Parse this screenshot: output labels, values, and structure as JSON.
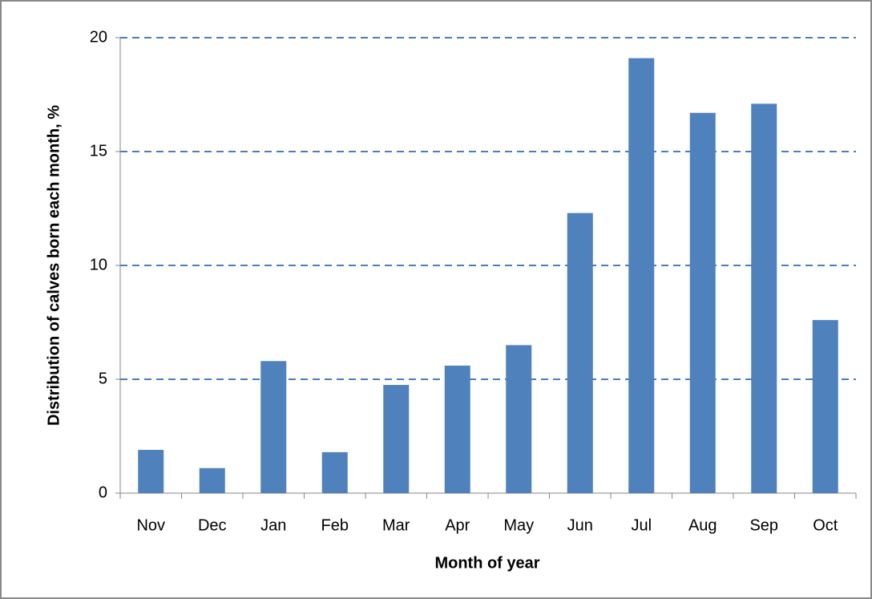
{
  "chart_data": {
    "type": "bar",
    "x_label": "Month of year",
    "y_label": "Distribution of calves born each month, %",
    "categories": [
      "Nov",
      "Dec",
      "Jan",
      "Feb",
      "Mar",
      "Apr",
      "May",
      "Jun",
      "Jul",
      "Aug",
      "Sep",
      "Oct"
    ],
    "values": [
      1.9,
      1.1,
      5.8,
      1.8,
      4.75,
      5.6,
      6.5,
      12.3,
      19.1,
      16.7,
      17.1,
      7.6
    ],
    "color": "#4f81bd",
    "ylim": [
      0,
      20
    ],
    "yticks": [
      0,
      5,
      10,
      15,
      20
    ],
    "grid": true
  }
}
